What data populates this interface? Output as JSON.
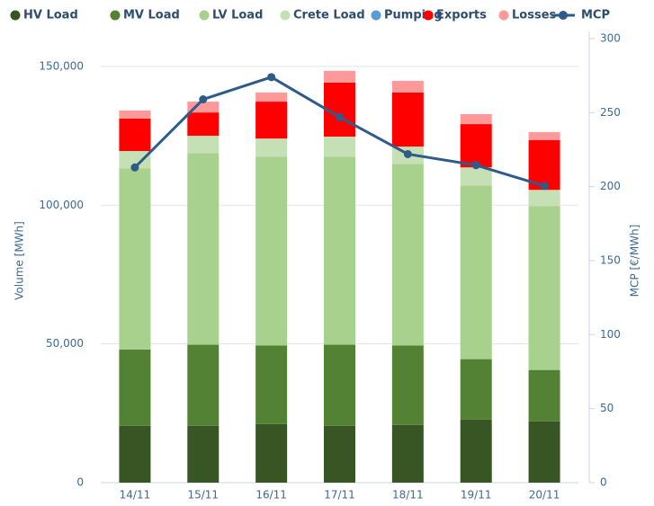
{
  "chart_data": {
    "type": "stacked-bar-line",
    "categories": [
      "14/11",
      "15/11",
      "16/11",
      "17/11",
      "18/11",
      "19/11",
      "20/11"
    ],
    "series": [
      {
        "name": "HV Load",
        "color": "#375623",
        "values": [
          20500,
          20500,
          21100,
          20500,
          20800,
          22700,
          22100
        ]
      },
      {
        "name": "MV Load",
        "color": "#548235",
        "values": [
          27500,
          29200,
          28300,
          29200,
          28600,
          21800,
          18500
        ]
      },
      {
        "name": "LV Load",
        "color": "#a9d18e",
        "values": [
          65300,
          69100,
          68100,
          67800,
          65500,
          62600,
          59100
        ]
      },
      {
        "name": "Crete Load",
        "color": "#c5e0b4",
        "values": [
          6200,
          6200,
          6500,
          7200,
          6200,
          6500,
          5800
        ]
      },
      {
        "name": "Pumping",
        "color": "#5b9bd5",
        "values": [
          0,
          0,
          0,
          0,
          0,
          0,
          0
        ]
      },
      {
        "name": "Exports",
        "color": "#ff0000",
        "values": [
          11700,
          8400,
          13300,
          19500,
          19500,
          15600,
          17900
        ]
      },
      {
        "name": "Losses",
        "color": "#ff9999",
        "values": [
          2900,
          3900,
          3300,
          4200,
          4200,
          3600,
          2900
        ]
      },
      {
        "name": "MCP",
        "color": "#2e5c8a",
        "axis": "y2",
        "values": [
          213,
          259,
          274,
          247,
          222,
          214.5,
          200.5
        ]
      }
    ],
    "y_label": "Volume [MWh]",
    "y2_label": "MCP [€/MWh]",
    "ylim": [
      0,
      160000
    ],
    "yticks": [
      0,
      {
        "value": 50000,
        "label": "50,000"
      },
      {
        "value": 100000,
        "label": "100,000"
      },
      {
        "value": 150000,
        "label": "150,000"
      }
    ],
    "y2lim": [
      0,
      300
    ],
    "y2ticks": [
      0,
      50,
      100,
      150,
      200,
      250,
      300
    ],
    "grid": true,
    "legend": "top"
  }
}
